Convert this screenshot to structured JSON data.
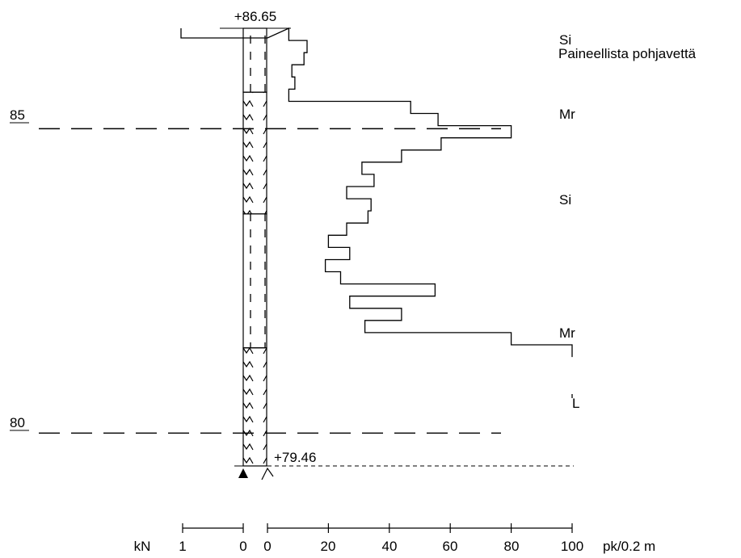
{
  "elevations": {
    "top": "+86.65",
    "bottom": "+79.46"
  },
  "reference_levels": [
    {
      "label": "85",
      "value": 85
    },
    {
      "label": "80",
      "value": 80
    }
  ],
  "soil_layers": [
    {
      "code": "Si",
      "top": 86.65,
      "bottom": 85.6,
      "pattern": "silt"
    },
    {
      "code": "Mr",
      "top": 85.6,
      "bottom": 83.6,
      "pattern": "moraine"
    },
    {
      "code": "Si",
      "top": 83.6,
      "bottom": 81.4,
      "pattern": "silt"
    },
    {
      "code": "Mr",
      "top": 81.4,
      "bottom": 79.46,
      "pattern": "moraine"
    }
  ],
  "annotations": {
    "groundwater_note": "Paineellista pohjavettä",
    "end_code": "L"
  },
  "resistance_profile": {
    "unit": "pk/0.2 m",
    "step_m": 0.2,
    "start_elevation": 86.65,
    "values": [
      7,
      13,
      12,
      8,
      9,
      7,
      47,
      56,
      80,
      57,
      44,
      31,
      35,
      26,
      34,
      33,
      26,
      20,
      27,
      19,
      24,
      55,
      27,
      44,
      32,
      80,
      100
    ]
  },
  "axis": {
    "kN_label": "kN",
    "kN_ticks": [
      "1",
      "0"
    ],
    "pk_ticks": [
      "0",
      "20",
      "40",
      "60",
      "80",
      "100"
    ],
    "pk_unit_label": "pk/0.2 m"
  }
}
